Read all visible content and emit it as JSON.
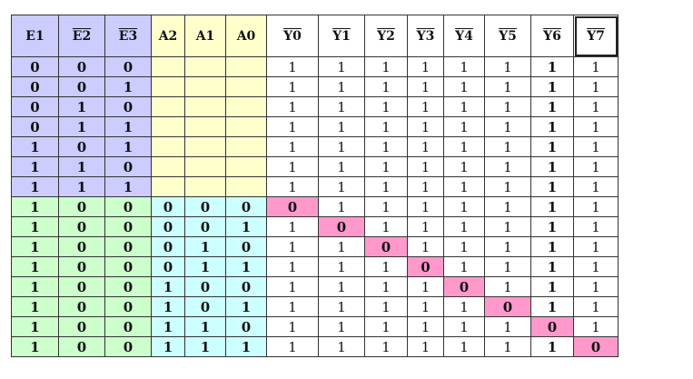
{
  "columns": [
    {
      "label": "E1",
      "overline": false
    },
    {
      "label": "E2",
      "overline": true
    },
    {
      "label": "E3",
      "overline": true
    },
    {
      "label": "A2",
      "overline": false
    },
    {
      "label": "A1",
      "overline": false
    },
    {
      "label": "A0",
      "overline": false
    },
    {
      "label": "Y0",
      "overline": true
    },
    {
      "label": "Y1",
      "overline": true
    },
    {
      "label": "Y2",
      "overline": true
    },
    {
      "label": "Y3",
      "overline": true
    },
    {
      "label": "Y4",
      "overline": true
    },
    {
      "label": "Y5",
      "overline": true
    },
    {
      "label": "Y6",
      "overline": true
    },
    {
      "label": "Y7",
      "overline": true
    }
  ],
  "rows": [
    [
      "0",
      "0",
      "0",
      "",
      "",
      "",
      "1",
      "1",
      "1",
      "1",
      "1",
      "1",
      "1",
      "1"
    ],
    [
      "0",
      "0",
      "1",
      "",
      "",
      "",
      "1",
      "1",
      "1",
      "1",
      "1",
      "1",
      "1",
      "1"
    ],
    [
      "0",
      "1",
      "0",
      "",
      "",
      "",
      "1",
      "1",
      "1",
      "1",
      "1",
      "1",
      "1",
      "1"
    ],
    [
      "0",
      "1",
      "1",
      "",
      "",
      "",
      "1",
      "1",
      "1",
      "1",
      "1",
      "1",
      "1",
      "1"
    ],
    [
      "1",
      "0",
      "1",
      "",
      "",
      "",
      "1",
      "1",
      "1",
      "1",
      "1",
      "1",
      "1",
      "1"
    ],
    [
      "1",
      "1",
      "0",
      "",
      "",
      "",
      "1",
      "1",
      "1",
      "1",
      "1",
      "1",
      "1",
      "1"
    ],
    [
      "1",
      "1",
      "1",
      "",
      "",
      "",
      "1",
      "1",
      "1",
      "1",
      "1",
      "1",
      "1",
      "1"
    ],
    [
      "1",
      "0",
      "0",
      "0",
      "0",
      "0",
      "0",
      "1",
      "1",
      "1",
      "1",
      "1",
      "1",
      "1"
    ],
    [
      "1",
      "0",
      "0",
      "0",
      "0",
      "1",
      "1",
      "0",
      "1",
      "1",
      "1",
      "1",
      "1",
      "1"
    ],
    [
      "1",
      "0",
      "0",
      "0",
      "1",
      "0",
      "1",
      "1",
      "0",
      "1",
      "1",
      "1",
      "1",
      "1"
    ],
    [
      "1",
      "0",
      "0",
      "0",
      "1",
      "1",
      "1",
      "1",
      "1",
      "0",
      "1",
      "1",
      "1",
      "1"
    ],
    [
      "1",
      "0",
      "0",
      "1",
      "0",
      "0",
      "1",
      "1",
      "1",
      "1",
      "0",
      "1",
      "1",
      "1"
    ],
    [
      "1",
      "0",
      "0",
      "1",
      "0",
      "1",
      "1",
      "1",
      "1",
      "1",
      "1",
      "0",
      "1",
      "1"
    ],
    [
      "1",
      "0",
      "0",
      "1",
      "1",
      "0",
      "1",
      "1",
      "1",
      "1",
      "1",
      "1",
      "0",
      "1"
    ],
    [
      "1",
      "0",
      "0",
      "1",
      "1",
      "1",
      "1",
      "1",
      "1",
      "1",
      "1",
      "1",
      "1",
      "0"
    ]
  ],
  "colors": {
    "header_enable": "#ccccff",
    "header_address": "#ffffcc",
    "header_output": "#ffffff",
    "enable_disabled": "#ccccff",
    "address_disabled": "#ffffcc",
    "enable_active": "#ccffcc",
    "address_active": "#ccffff",
    "output_low": "#ff99cc",
    "output_default": "#ffffff"
  }
}
